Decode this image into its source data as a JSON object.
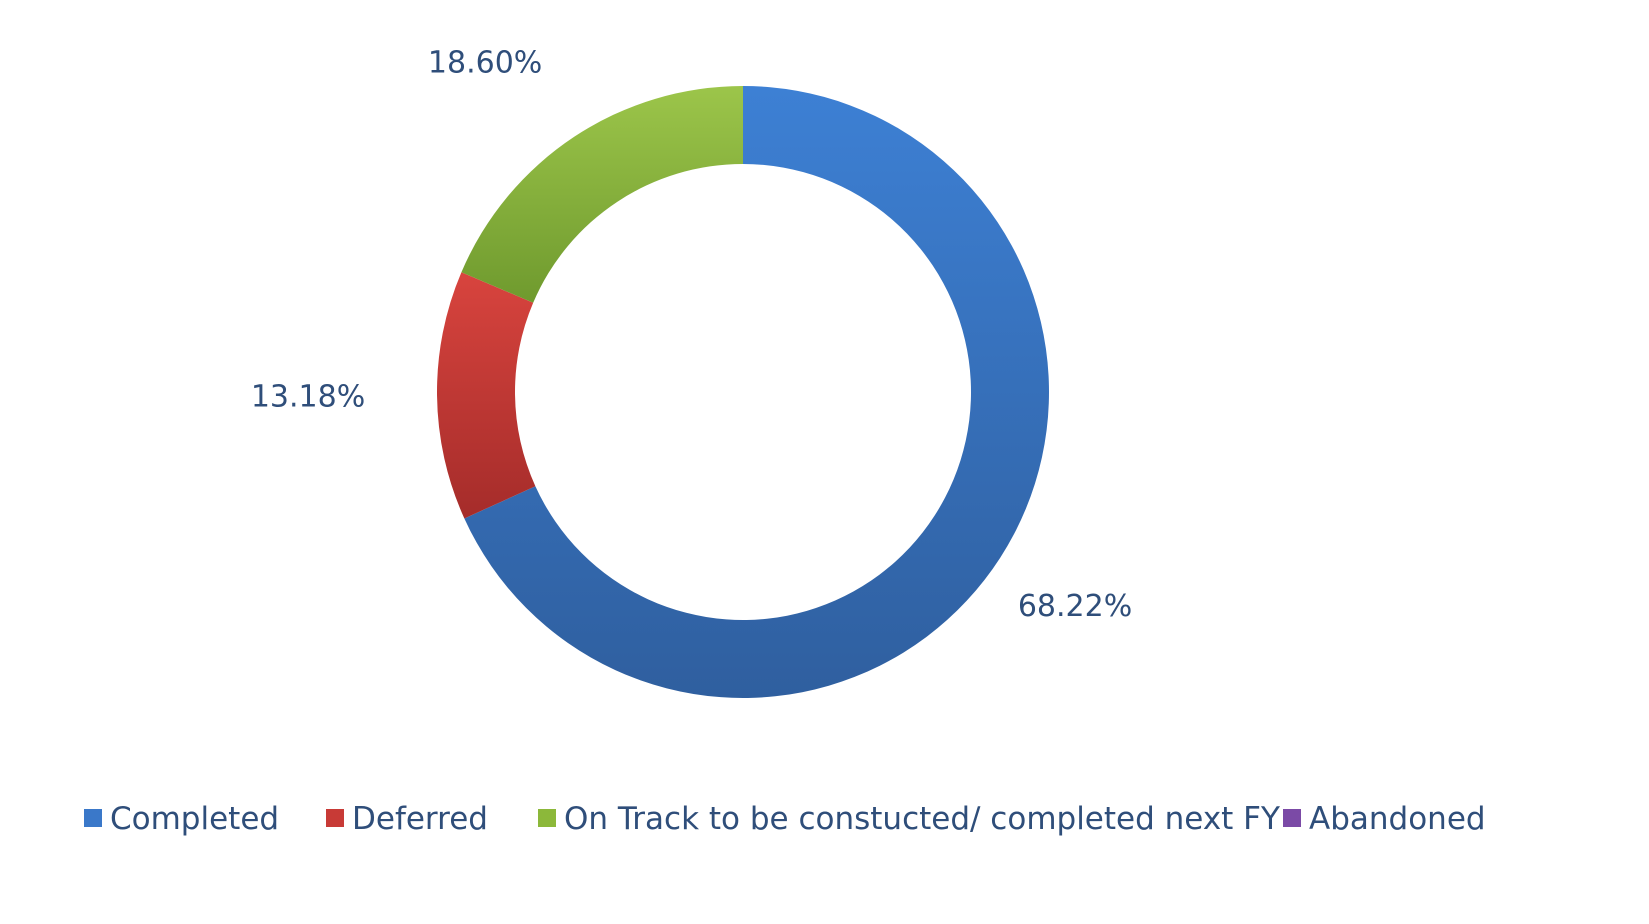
{
  "chart_data": {
    "type": "pie",
    "variant": "donut",
    "categories": [
      "Completed",
      "Deferred",
      "On Track to be constucted/ completed next FY",
      "Abandoned"
    ],
    "values": [
      68.22,
      13.18,
      18.6,
      0
    ],
    "labels": [
      "68.22%",
      "13.18%",
      "18.60%",
      ""
    ],
    "colors": [
      "#3a78c9",
      "#c83a36",
      "#8cb83a",
      "#7b4aa6"
    ],
    "legend_position": "bottom",
    "start_angle": "12 o'clock, clockwise"
  }
}
